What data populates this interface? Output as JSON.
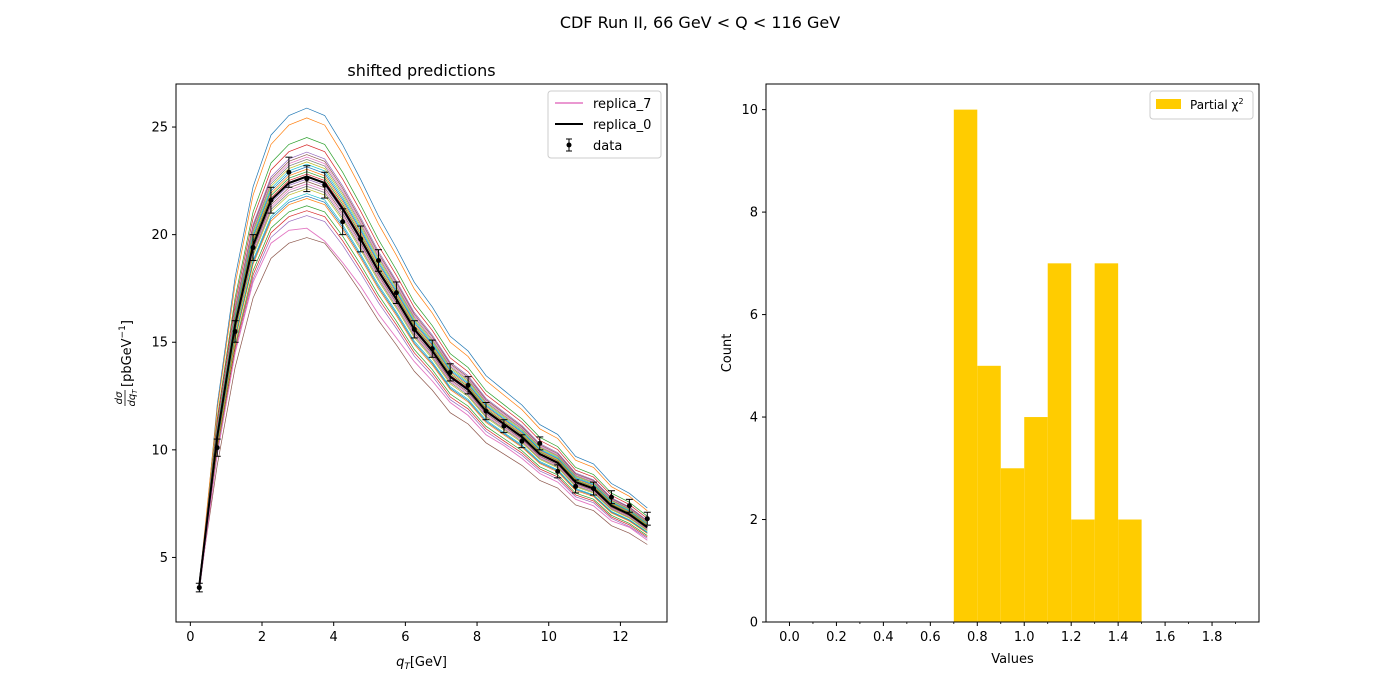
{
  "figure": {
    "suptitle": "CDF Run II, 66 GeV < Q < 116 GeV"
  },
  "colors": {
    "replica_7": "#e377c2",
    "replica_0": "#000000",
    "data": "#000000",
    "hist": "#ffcc00",
    "palette": [
      "#1f77b4",
      "#ff7f0e",
      "#2ca02c",
      "#d62728",
      "#9467bd",
      "#8c564b",
      "#e377c2",
      "#7f7f7f",
      "#bcbd22",
      "#17becf"
    ]
  },
  "chart_data": [
    {
      "type": "line",
      "title": "shifted predictions",
      "xlabel_main": "q",
      "xlabel_sub": "T",
      "xlabel_unit": "[GeV]",
      "ylabel_main": "[pbGeV",
      "ylabel_sup": "−1",
      "ylabel_close": "]",
      "xlim": [
        -0.4,
        13.3
      ],
      "ylim": [
        2.0,
        27.0
      ],
      "xticks": [
        0,
        2,
        4,
        6,
        8,
        10,
        12
      ],
      "yticks": [
        5,
        10,
        15,
        20,
        25
      ],
      "legend": {
        "location": "upper right",
        "entries": [
          "replica_7",
          "replica_0",
          "data"
        ]
      },
      "x": [
        0.25,
        0.75,
        1.25,
        1.75,
        2.25,
        2.75,
        3.25,
        3.75,
        4.25,
        4.75,
        5.25,
        5.75,
        6.25,
        6.75,
        7.25,
        7.75,
        8.25,
        8.75,
        9.25,
        9.75,
        10.25,
        10.75,
        11.25,
        11.75,
        12.25,
        12.75
      ],
      "series": [
        {
          "name": "data",
          "kind": "errorbar",
          "y": [
            3.6,
            10.1,
            15.5,
            19.4,
            21.6,
            22.9,
            22.6,
            22.3,
            20.6,
            19.8,
            18.8,
            17.3,
            15.6,
            14.7,
            13.6,
            13.0,
            11.8,
            11.1,
            10.4,
            10.3,
            9.0,
            8.3,
            8.2,
            7.8,
            7.4,
            6.8
          ],
          "err": [
            0.2,
            0.4,
            0.5,
            0.6,
            0.6,
            0.7,
            0.6,
            0.6,
            0.6,
            0.6,
            0.5,
            0.5,
            0.4,
            0.4,
            0.4,
            0.4,
            0.4,
            0.3,
            0.3,
            0.3,
            0.3,
            0.3,
            0.3,
            0.3,
            0.3,
            0.3
          ]
        },
        {
          "name": "replica_0",
          "kind": "line",
          "y": [
            3.7,
            10.6,
            15.8,
            19.5,
            21.6,
            22.4,
            22.7,
            22.4,
            21.2,
            19.8,
            18.3,
            17.0,
            15.6,
            14.6,
            13.4,
            12.8,
            11.8,
            11.2,
            10.6,
            9.8,
            9.4,
            8.5,
            8.2,
            7.4,
            7.0,
            6.4
          ]
        },
        {
          "name": "replica_7",
          "kind": "line",
          "y": [
            3.5,
            9.8,
            14.5,
            17.8,
            19.6,
            20.2,
            20.3,
            19.7,
            18.7,
            17.6,
            16.3,
            15.2,
            14.1,
            13.2,
            12.2,
            11.6,
            10.7,
            10.2,
            9.6,
            8.9,
            8.5,
            7.7,
            7.4,
            6.7,
            6.4,
            5.8
          ]
        }
      ],
      "replica_scale_factors": [
        1.14,
        1.12,
        1.08,
        1.065,
        1.05,
        1.045,
        1.04,
        1.035,
        1.03,
        1.025,
        1.02,
        1.015,
        1.01,
        1.005,
        0.995,
        0.99,
        0.985,
        0.98,
        0.975,
        0.965,
        0.96,
        0.955,
        0.94,
        0.93,
        0.92,
        0.875
      ]
    },
    {
      "type": "bar",
      "xlabel": "Values",
      "ylabel": "Count",
      "xlim": [
        -0.1,
        2.0
      ],
      "ylim": [
        0,
        10.5
      ],
      "xticks": [
        "0.0",
        "0.2",
        "0.4",
        "0.6",
        "0.8",
        "1.0",
        "1.2",
        "1.4",
        "1.6",
        "1.8"
      ],
      "yticks": [
        0,
        2,
        4,
        6,
        8,
        10
      ],
      "legend": {
        "location": "upper right",
        "label": "Partial χ",
        "sup": "2"
      },
      "bin_edges": [
        0.7,
        0.8,
        0.9,
        1.0,
        1.1,
        1.2,
        1.3,
        1.4,
        1.5
      ],
      "counts": [
        10,
        5,
        3,
        4,
        7,
        2,
        7,
        2
      ]
    }
  ]
}
